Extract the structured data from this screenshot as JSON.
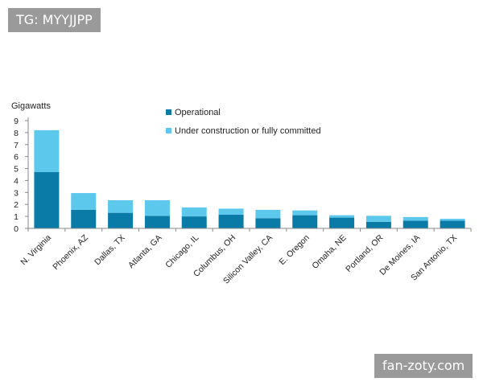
{
  "watermarks": {
    "top": "TG: MYYJJPP",
    "bottom": "fan-zoty.com"
  },
  "chart_data": {
    "type": "bar",
    "stacked": true,
    "ylabel": "Gigawatts",
    "ylim": [
      0,
      9
    ],
    "yticks": [
      0,
      1,
      2,
      3,
      4,
      5,
      6,
      7,
      8,
      9
    ],
    "grid": false,
    "legend_position": "top",
    "categories": [
      "N. Virginia",
      "Phoenix, AZ",
      "Dallas, TX",
      "Atlanta, GA",
      "Chicago, IL",
      "Columbus, OH",
      "Silicon Valley, CA",
      "E. Oregon",
      "Omaha, NE",
      "Portland, OR",
      "De Moines, IA",
      "San Antonio, TX"
    ],
    "series": [
      {
        "name": "Operational",
        "color": "#0a7aa6",
        "values": [
          4.7,
          1.55,
          1.3,
          1.05,
          1.0,
          1.15,
          0.85,
          1.1,
          0.9,
          0.55,
          0.65,
          0.65
        ]
      },
      {
        "name": "Under construction or fully committed",
        "color": "#5cc8ec",
        "values": [
          3.5,
          1.4,
          1.05,
          1.3,
          0.75,
          0.5,
          0.7,
          0.4,
          0.2,
          0.5,
          0.3,
          0.15
        ]
      }
    ]
  }
}
